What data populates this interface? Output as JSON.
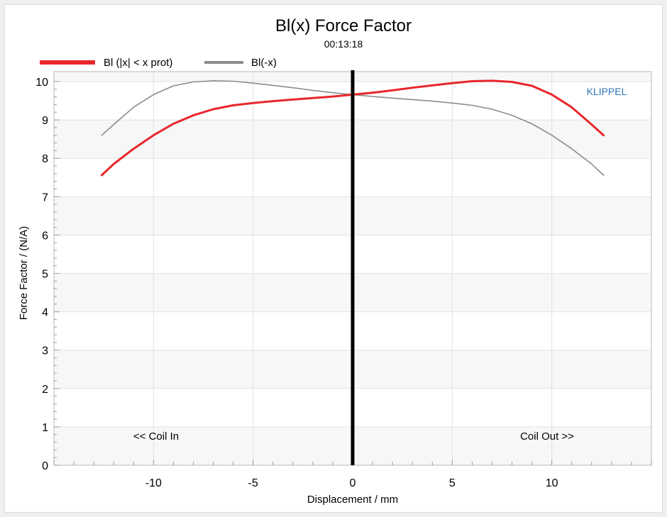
{
  "chart_data": {
    "type": "line",
    "title": "Bl(x) Force Factor",
    "subtitle": "00:13:18",
    "xlabel": "Displacement / mm",
    "ylabel": "Force Factor / (N/A)",
    "xlim": [
      -15,
      15
    ],
    "ylim": [
      0,
      10.3
    ],
    "xticks": [
      -10,
      -5,
      0,
      5,
      10
    ],
    "yticks": [
      0,
      1,
      2,
      3,
      4,
      5,
      6,
      7,
      8,
      9,
      10
    ],
    "grid": true,
    "legend_position": "top-left",
    "brand": "KLIPPEL",
    "annotations": {
      "left": "<< Coil In",
      "right": "Coil Out >>"
    },
    "series": [
      {
        "name": "Bl (|x| < x prot)",
        "color": "#e8262b",
        "x": [
          -12.6,
          -12,
          -11,
          -10,
          -9,
          -8,
          -7,
          -6,
          -5,
          -4,
          -3,
          -2,
          -1,
          0,
          1,
          2,
          3,
          4,
          5,
          6,
          7,
          8,
          9,
          10,
          11,
          12,
          12.6
        ],
        "y": [
          7.56,
          7.85,
          8.25,
          8.6,
          8.9,
          9.12,
          9.28,
          9.38,
          9.44,
          9.49,
          9.53,
          9.57,
          9.61,
          9.66,
          9.71,
          9.77,
          9.84,
          9.9,
          9.96,
          10.01,
          10.02,
          9.99,
          9.89,
          9.66,
          9.33,
          8.88,
          8.6
        ]
      },
      {
        "name": "Bl(-x)",
        "color": "#8c8c8c",
        "x": [
          -12.6,
          -12,
          -11,
          -10,
          -9,
          -8,
          -7,
          -6,
          -5,
          -4,
          -3,
          -2,
          -1,
          0,
          1,
          2,
          3,
          4,
          5,
          6,
          7,
          8,
          9,
          10,
          11,
          12,
          12.6
        ],
        "y": [
          8.6,
          8.88,
          9.33,
          9.66,
          9.89,
          9.99,
          10.02,
          10.01,
          9.96,
          9.9,
          9.84,
          9.77,
          9.71,
          9.66,
          9.61,
          9.57,
          9.53,
          9.49,
          9.44,
          9.38,
          9.28,
          9.12,
          8.9,
          8.6,
          8.25,
          7.85,
          7.56
        ]
      }
    ],
    "vertical_marker_x": 0
  }
}
